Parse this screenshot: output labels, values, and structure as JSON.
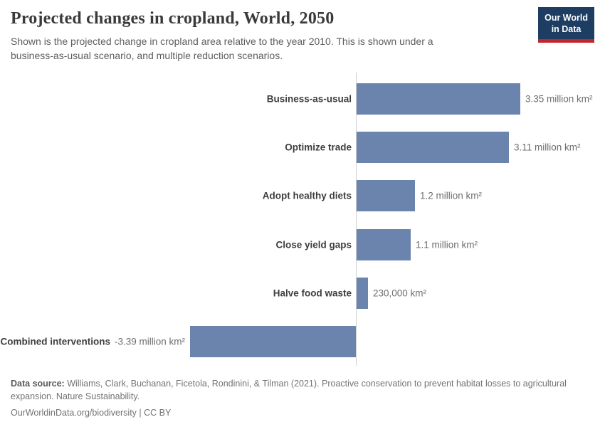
{
  "header": {
    "title": "Projected changes in cropland, World, 2050",
    "subtitle": "Shown is the projected change in cropland area relative to the year 2010. This is shown under a business-as-usual scenario, and multiple reduction scenarios.",
    "logo": {
      "line1": "Our World",
      "line2": "in Data"
    }
  },
  "chart_data": {
    "type": "bar",
    "orientation": "horizontal",
    "title": "Projected changes in cropland, World, 2050",
    "categories": [
      "Business-as-usual",
      "Optimize trade",
      "Adopt healthy diets",
      "Close yield gaps",
      "Halve food waste",
      "Combined interventions"
    ],
    "values_million_km2": [
      3.35,
      3.11,
      1.2,
      1.1,
      0.23,
      -3.39
    ],
    "value_labels": [
      "3.35 million km²",
      "3.11 million km²",
      "1.2 million km²",
      "1.1 million km²",
      "230,000 km²",
      "-3.39 million km²"
    ],
    "unit": "km²",
    "xlim": [
      -3.39,
      3.35
    ],
    "gridlines": false,
    "zero_line": true,
    "bar_color": "#6b84ae"
  },
  "colors": {
    "bar": "#6b84ae",
    "logo_bg": "#1d3d63",
    "logo_stripe": "#c0262d",
    "axis": "#cfcfcf"
  },
  "footer": {
    "source_label": "Data source:",
    "source_text": " Williams, Clark, Buchanan, Ficetola, Rondinini, & Tilman (2021). Proactive conservation to prevent habitat losses to agricultural expansion. Nature Sustainability.",
    "attribution": "OurWorldinData.org/biodiversity | CC BY"
  }
}
